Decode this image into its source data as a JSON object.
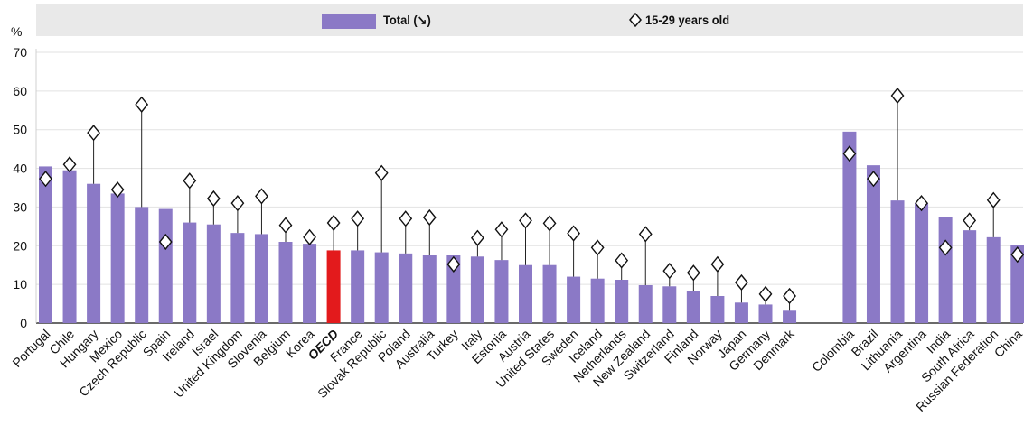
{
  "chart_data": {
    "type": "bar",
    "ylabel": "%",
    "ylim": [
      0,
      70
    ],
    "yticks": [
      0,
      10,
      20,
      30,
      40,
      50,
      60,
      70
    ],
    "grid": true,
    "legend_position": "top",
    "colors": {
      "total": "#8b79c6",
      "highlight": "#e31a1c",
      "grid": "#e2e2e2",
      "marker_fill": "#ffffff",
      "marker_stroke": "#111111"
    },
    "highlight_category": "OECD",
    "legend": {
      "total_label": "Total (↘)",
      "young_label": "15-29 years old"
    },
    "group_gap_after": "Denmark",
    "categories": [
      "Portugal",
      "Chile",
      "Hungary",
      "Mexico",
      "Czech Republic",
      "Spain",
      "Ireland",
      "Israel",
      "United Kingdom",
      "Slovenia",
      "Belgium",
      "Korea",
      "OECD",
      "France",
      "Slovak Republic",
      "Poland",
      "Australia",
      "Turkey",
      "Italy",
      "Estonia",
      "Austria",
      "United States",
      "Sweden",
      "Iceland",
      "Netherlands",
      "New Zealand",
      "Switzerland",
      "Finland",
      "Norway",
      "Japan",
      "Germany",
      "Denmark",
      "Colombia",
      "Brazil",
      "Lithuania",
      "Argentina",
      "India",
      "South Africa",
      "Russian Federation",
      "China"
    ],
    "series": [
      {
        "name": "Total (↘)",
        "values": [
          40.5,
          39.5,
          36,
          33.5,
          30,
          29.5,
          26,
          25.5,
          23.3,
          23,
          21,
          20.5,
          18.8,
          18.8,
          18.3,
          18,
          17.5,
          17.5,
          17.2,
          16.3,
          15,
          15,
          12,
          11.5,
          11.2,
          9.8,
          9.5,
          8.3,
          7,
          5.3,
          4.8,
          3.2,
          49.5,
          40.8,
          31.7,
          31,
          27.5,
          24,
          22.2,
          20.2
        ]
      },
      {
        "name": "15-29 years old",
        "values": [
          37.3,
          41,
          49.2,
          34.5,
          56.5,
          21,
          36.8,
          32.2,
          31,
          32.8,
          25.3,
          22.2,
          25.9,
          27,
          38.8,
          27,
          27.3,
          15.2,
          22,
          24.2,
          26.5,
          25.8,
          23.2,
          19.5,
          16.2,
          23,
          13.5,
          13,
          15.2,
          10.5,
          7.5,
          7,
          43.8,
          37.3,
          58.8,
          31,
          19.5,
          26.5,
          31.8,
          17.7
        ]
      }
    ]
  }
}
